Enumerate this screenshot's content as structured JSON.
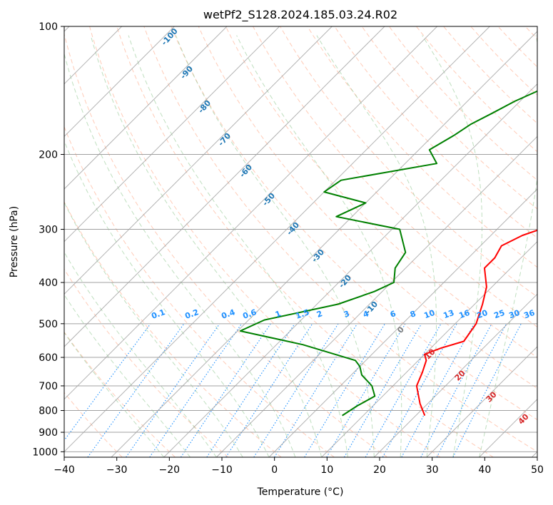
{
  "chart_data": {
    "type": "line",
    "title": "wetPf2_S128.2024.185.03.24.R02",
    "xlabel": "Temperature (°C)",
    "ylabel": "Pressure (hPa)",
    "xlim": [
      -40,
      50
    ],
    "ylim": [
      1030,
      100
    ],
    "y_scale": "log",
    "grid": true,
    "x_ticks": [
      -40,
      -30,
      -20,
      -10,
      0,
      10,
      20,
      30,
      40,
      50
    ],
    "y_ticks": [
      100,
      200,
      300,
      400,
      500,
      600,
      700,
      800,
      900,
      1000
    ],
    "colors": {
      "temperature": "#ff0000",
      "dewpoint": "#008000",
      "isotherm": "#a0a0a0",
      "dry_adiabat": "#ff8c60",
      "moist_adiabat": "#7fbf7f",
      "mixing_ratio": "#1e90ff",
      "label_blue": "#1f77b4",
      "label_red": "#d62728"
    },
    "series": [
      {
        "type": "temperature",
        "points": [
          [
            21.7,
            822
          ],
          [
            18.5,
            770
          ],
          [
            14.5,
            700
          ],
          [
            13.0,
            650
          ],
          [
            11.5,
            610
          ],
          [
            10.0,
            590
          ],
          [
            12.0,
            570
          ],
          [
            15.0,
            550
          ],
          [
            14.0,
            500
          ],
          [
            11.5,
            450
          ],
          [
            9.0,
            410
          ],
          [
            5.0,
            370
          ],
          [
            5.0,
            350
          ],
          [
            4.0,
            328
          ],
          [
            6.0,
            310
          ],
          [
            10.5,
            290
          ],
          [
            12.5,
            270
          ],
          [
            12.8,
            250
          ],
          [
            10.5,
            220
          ],
          [
            7.0,
            190
          ],
          [
            3.5,
            160
          ],
          [
            3.0,
            140
          ],
          [
            3.0,
            130
          ],
          [
            3.0,
            120
          ],
          [
            5.0,
            110
          ],
          [
            6.0,
            100
          ]
        ]
      },
      {
        "type": "dewpoint",
        "points": [
          [
            6.0,
            822
          ],
          [
            7.0,
            780
          ],
          [
            8.5,
            740
          ],
          [
            6.0,
            700
          ],
          [
            2.0,
            660
          ],
          [
            0.0,
            630
          ],
          [
            -2.0,
            610
          ],
          [
            -15.0,
            560
          ],
          [
            -29.5,
            520
          ],
          [
            -27.0,
            490
          ],
          [
            -16.0,
            450
          ],
          [
            -11.5,
            420
          ],
          [
            -9.5,
            400
          ],
          [
            -12.0,
            370
          ],
          [
            -13.0,
            340
          ],
          [
            -18.5,
            300
          ],
          [
            -33.0,
            280
          ],
          [
            -30.0,
            260
          ],
          [
            -40.0,
            245
          ],
          [
            -39.0,
            230
          ],
          [
            -24.0,
            210
          ],
          [
            -28.0,
            195
          ],
          [
            -26.0,
            180
          ],
          [
            -25.0,
            170
          ],
          [
            -23.0,
            160
          ],
          [
            -21.0,
            150
          ],
          [
            -18.0,
            140
          ],
          [
            -17.0,
            130
          ],
          [
            -14.0,
            120
          ],
          [
            -11.0,
            110
          ],
          [
            -8.0,
            100
          ]
        ]
      }
    ],
    "isotherm_labels": [
      "-100",
      "-90",
      "-80",
      "-70",
      "-60",
      "-50",
      "-40",
      "-30",
      "-20",
      "-10"
    ],
    "dry_adiabat_labels": [
      "0",
      "10",
      "20",
      "30",
      "40"
    ],
    "mixing_ratio_labels": [
      "0.1",
      "0.2",
      "0.4",
      "0.6",
      "1",
      "1.5",
      "2",
      "3",
      "4",
      "6",
      "8",
      "10",
      "13",
      "16",
      "20",
      "25",
      "30",
      "36"
    ]
  }
}
